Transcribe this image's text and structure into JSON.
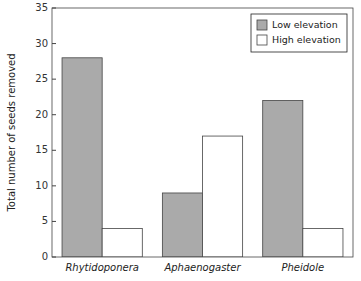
{
  "chart_data": {
    "type": "bar",
    "categories": [
      "Rhytidoponera",
      "Aphaenogaster",
      "Pheidole"
    ],
    "series": [
      {
        "name": "Low elevation",
        "color": "#aaaaaa",
        "values": [
          28,
          9,
          22
        ]
      },
      {
        "name": "High elevation",
        "color": "#ffffff",
        "values": [
          4,
          17,
          4
        ]
      }
    ],
    "ylabel": "Total number of seeds removed",
    "ylim": [
      0,
      35
    ],
    "yticks": [
      0,
      5,
      10,
      15,
      20,
      25,
      30,
      35
    ],
    "legend": "upper right"
  }
}
